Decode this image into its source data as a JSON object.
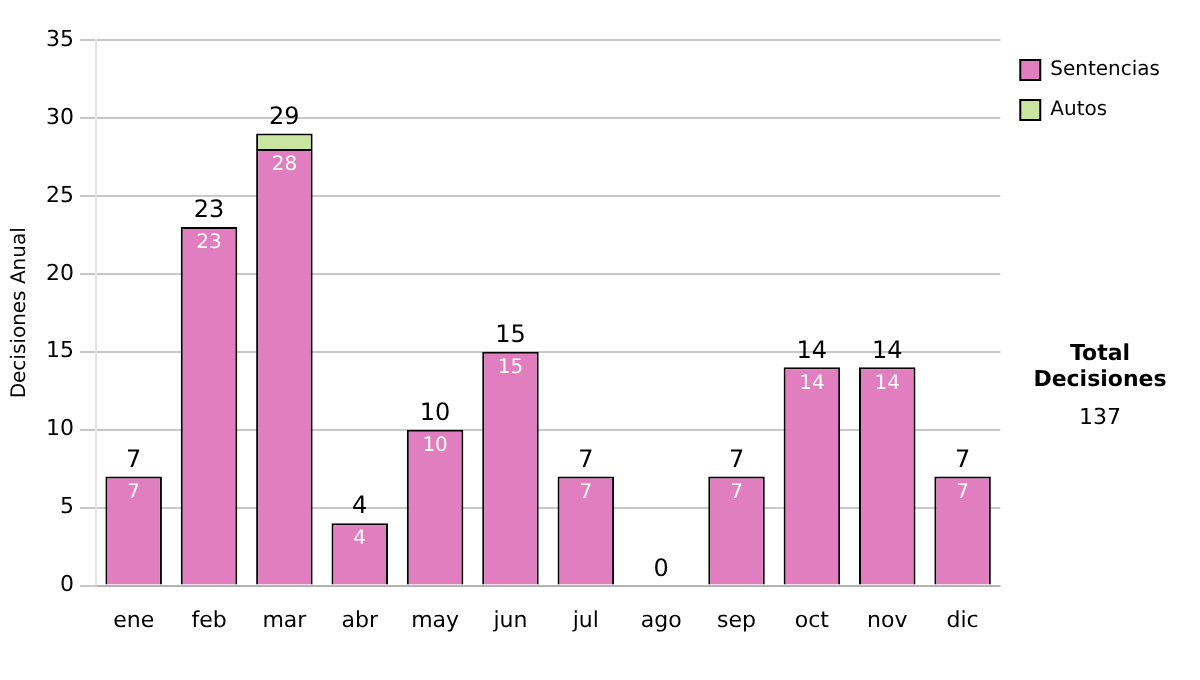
{
  "chart_data": {
    "type": "bar",
    "stacked": true,
    "ylabel": "Decisiones Anual",
    "categories": [
      "ene",
      "feb",
      "mar",
      "abr",
      "may",
      "jun",
      "jul",
      "ago",
      "sep",
      "oct",
      "nov",
      "dic"
    ],
    "series": [
      {
        "name": "Sentencias",
        "color": "#e07ec0",
        "values": [
          7,
          23,
          28,
          4,
          10,
          15,
          7,
          0,
          7,
          14,
          14,
          7
        ],
        "value_labels": [
          "7",
          "23",
          "28",
          "4",
          "10",
          "15",
          "7",
          null,
          "7",
          "14",
          "14",
          "7"
        ]
      },
      {
        "name": "Autos",
        "color": "#c8e6a0",
        "values": [
          0,
          0,
          1,
          0,
          0,
          0,
          0,
          0,
          0,
          0,
          0,
          0
        ]
      }
    ],
    "totals": [
      "7",
      "23",
      "29",
      "4",
      "10",
      "15",
      "7",
      "0",
      "7",
      "14",
      "14",
      "7"
    ],
    "ylim": [
      0,
      35
    ],
    "yticks": [
      0,
      5,
      10,
      15,
      20,
      25,
      30,
      35
    ],
    "grid": "y",
    "legend": "right",
    "annotations": [
      "Total Decisiones",
      "137"
    ]
  }
}
